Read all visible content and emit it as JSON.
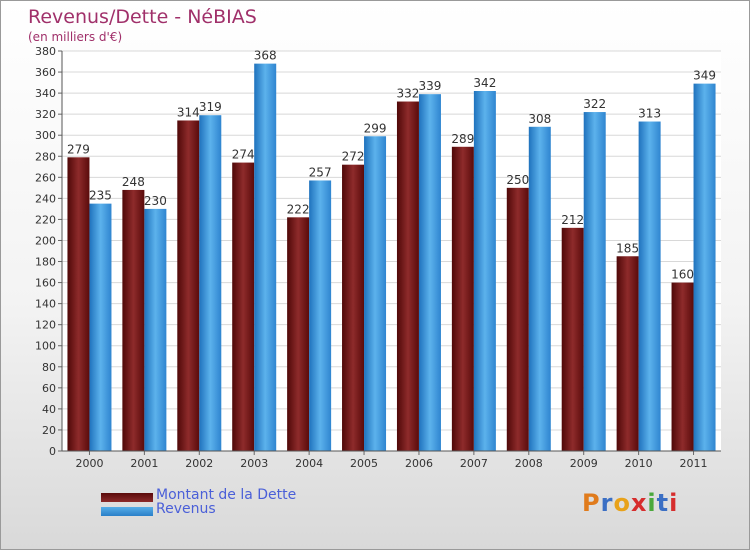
{
  "header": {
    "title": "Revenus/Dette - NéBIAS",
    "subtitle": "(en milliers d'€)"
  },
  "chart_data": {
    "type": "bar",
    "categories": [
      "2000",
      "2001",
      "2002",
      "2003",
      "2004",
      "2005",
      "2006",
      "2007",
      "2008",
      "2009",
      "2010",
      "2011"
    ],
    "series": [
      {
        "name": "Montant de la Dette",
        "values": [
          279,
          248,
          314,
          274,
          222,
          272,
          332,
          289,
          250,
          212,
          185,
          160
        ],
        "color": "#7a1515"
      },
      {
        "name": "Revenus",
        "values": [
          235,
          230,
          319,
          368,
          257,
          299,
          339,
          342,
          308,
          322,
          313,
          349
        ],
        "color": "#3d98e0"
      }
    ],
    "ylim": [
      0,
      380
    ],
    "ytick_step": 20,
    "grid": true,
    "legend_position": "bottom-left",
    "colors": {
      "title": "#a0306a",
      "legend_text": "#4a5fd8"
    }
  },
  "legend": {
    "items": [
      {
        "label": "Montant de la Dette",
        "color": "#7a1515"
      },
      {
        "label": "Revenus",
        "color": "#3d98e0"
      }
    ]
  },
  "logo": {
    "letters": [
      "P",
      "r",
      "o",
      "x",
      "i",
      "t",
      "i"
    ],
    "colors": [
      "#e07b1c",
      "#3b6fc4",
      "#e8a21a",
      "#d62d2d",
      "#4aa83c",
      "#3b6fc4",
      "#d62d2d"
    ]
  }
}
